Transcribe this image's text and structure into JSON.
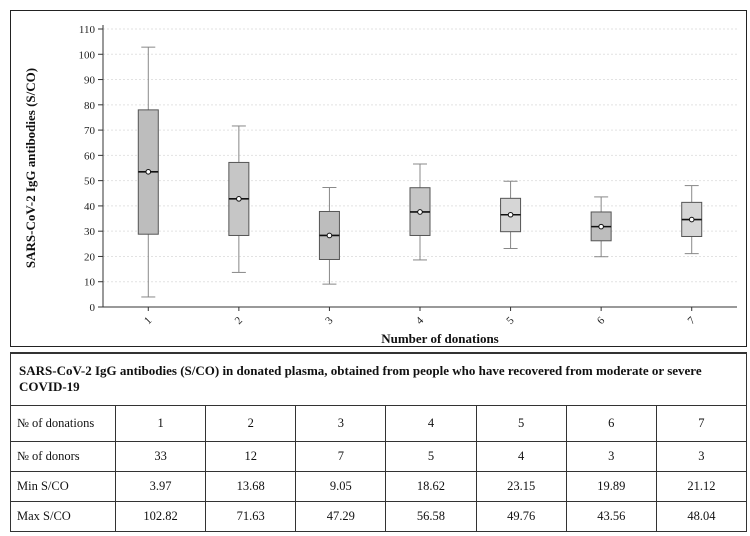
{
  "chart_data": {
    "type": "boxplot",
    "xlabel": "Number of donations",
    "ylabel": "SARS-CoV-2 IgG antibodies (S/CO)",
    "ylim": [
      0,
      110
    ],
    "yticks": [
      0,
      10,
      20,
      30,
      40,
      50,
      60,
      70,
      80,
      90,
      100,
      110
    ],
    "categories": [
      "1",
      "2",
      "3",
      "4",
      "5",
      "6",
      "7"
    ],
    "boxes": [
      {
        "category": "1",
        "min": 3.97,
        "q1": 28.8,
        "median": 53.5,
        "q3": 78.0,
        "max": 102.82,
        "fill": "#bdbdbd"
      },
      {
        "category": "2",
        "min": 13.68,
        "q1": 28.3,
        "median": 42.8,
        "q3": 57.2,
        "max": 71.63,
        "fill": "#c6c6c6"
      },
      {
        "category": "3",
        "min": 9.05,
        "q1": 18.8,
        "median": 28.3,
        "q3": 37.8,
        "max": 47.29,
        "fill": "#bdbdbd"
      },
      {
        "category": "4",
        "min": 18.62,
        "q1": 28.3,
        "median": 37.6,
        "q3": 47.2,
        "max": 56.58,
        "fill": "#c6c6c6"
      },
      {
        "category": "5",
        "min": 23.15,
        "q1": 29.8,
        "median": 36.5,
        "q3": 43.0,
        "max": 49.76,
        "fill": "#d6d6d6"
      },
      {
        "category": "6",
        "min": 19.89,
        "q1": 26.2,
        "median": 31.8,
        "q3": 37.6,
        "max": 43.56,
        "fill": "#bdbdbd"
      },
      {
        "category": "7",
        "min": 21.12,
        "q1": 27.9,
        "median": 34.6,
        "q3": 41.4,
        "max": 48.04,
        "fill": "#d6d6d6"
      }
    ],
    "grid": true
  },
  "table": {
    "caption": "SARS-CoV-2 IgG antibodies (S/CO) in donated plasma, obtained from people who have recovered from moderate or severe COVID-19",
    "rows": [
      {
        "label": "№ of donations",
        "cells": [
          "1",
          "2",
          "3",
          "4",
          "5",
          "6",
          "7"
        ]
      },
      {
        "label": "№ of donors",
        "cells": [
          "33",
          "12",
          "7",
          "5",
          "4",
          "3",
          "3"
        ]
      },
      {
        "label": "Min S/CO",
        "cells": [
          "3.97",
          "13.68",
          "9.05",
          "18.62",
          "23.15",
          "19.89",
          "21.12"
        ]
      },
      {
        "label": "Max S/CO",
        "cells": [
          "102.82",
          "71.63",
          "47.29",
          "56.58",
          "49.76",
          "43.56",
          "48.04"
        ]
      }
    ]
  }
}
